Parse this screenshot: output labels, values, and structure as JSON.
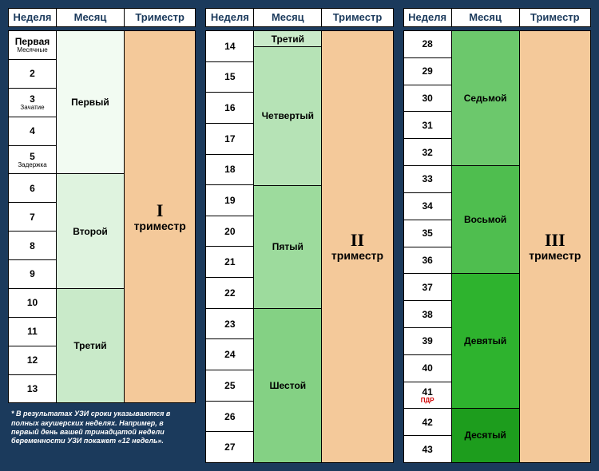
{
  "headers": {
    "week": "Неделя",
    "month": "Месяц",
    "tri": "Триместр"
  },
  "colors": {
    "bg": "#1b3a5c",
    "trimester": "#f4c99a",
    "m1": "#f2fbf2",
    "m2": "#dff3df",
    "m3": "#c9eac9",
    "m4": "#b6e3b6",
    "m5": "#9ddb9d",
    "m6": "#84d184",
    "m7": "#6cc86c",
    "m8": "#4fbe4f",
    "m9": "#2eb32e",
    "m10": "#1d9d1d"
  },
  "panel1": {
    "weeks": [
      {
        "label": "Первая",
        "sub": "Месячные"
      },
      {
        "label": "2"
      },
      {
        "label": "3",
        "sub": "Зачатие"
      },
      {
        "label": "4"
      },
      {
        "label": "5",
        "sub": "Задержка"
      },
      {
        "label": "6"
      },
      {
        "label": "7"
      },
      {
        "label": "8"
      },
      {
        "label": "9"
      },
      {
        "label": "10"
      },
      {
        "label": "11"
      },
      {
        "label": "12"
      },
      {
        "label": "13"
      }
    ],
    "months": [
      {
        "label": "Первый",
        "span": 5,
        "colorKey": "m1"
      },
      {
        "label": "Второй",
        "span": 4,
        "colorKey": "m2"
      },
      {
        "label": "Третий",
        "span": 4,
        "colorKey": "m3"
      }
    ],
    "trimester": {
      "num": "I",
      "word": "триместр"
    },
    "bodyFraction": 0.82,
    "footnote": "* В результатах УЗИ сроки указываются в полных акушерских неделях. Например, в первый день вашей тринадцатой недели беременности УЗИ покажет «12 недель»."
  },
  "panel2": {
    "weeks": [
      {
        "label": "14"
      },
      {
        "label": "15"
      },
      {
        "label": "16"
      },
      {
        "label": "17"
      },
      {
        "label": "18"
      },
      {
        "label": "19"
      },
      {
        "label": "20"
      },
      {
        "label": "21"
      },
      {
        "label": "22"
      },
      {
        "label": "23"
      },
      {
        "label": "24"
      },
      {
        "label": "25"
      },
      {
        "label": "26"
      },
      {
        "label": "27"
      }
    ],
    "months": [
      {
        "label": "Третий",
        "span": 0.5,
        "colorKey": "m3",
        "firstHalfRow": true
      },
      {
        "label": "Четвертый",
        "span": 4.5,
        "colorKey": "m4"
      },
      {
        "label": "Пятый",
        "span": 4,
        "colorKey": "m5"
      },
      {
        "label": "Шестой",
        "span": 5,
        "colorKey": "m6"
      }
    ],
    "trimester": {
      "num": "II",
      "word": "триместр"
    }
  },
  "panel3": {
    "weeks": [
      {
        "label": "28"
      },
      {
        "label": "29"
      },
      {
        "label": "30"
      },
      {
        "label": "31"
      },
      {
        "label": "32"
      },
      {
        "label": "33"
      },
      {
        "label": "34"
      },
      {
        "label": "35"
      },
      {
        "label": "36"
      },
      {
        "label": "37"
      },
      {
        "label": "38"
      },
      {
        "label": "39"
      },
      {
        "label": "40"
      },
      {
        "label": "41",
        "sub": "ПДР",
        "subClass": "pdr"
      },
      {
        "label": "42"
      },
      {
        "label": "43"
      }
    ],
    "months": [
      {
        "label": "Седьмой",
        "span": 5,
        "colorKey": "m7"
      },
      {
        "label": "Восьмой",
        "span": 4,
        "colorKey": "m8"
      },
      {
        "label": "Девятый",
        "span": 5,
        "colorKey": "m9"
      },
      {
        "label": "Десятый",
        "span": 2,
        "colorKey": "m10"
      }
    ],
    "trimester": {
      "num": "III",
      "word": "триместр"
    }
  }
}
